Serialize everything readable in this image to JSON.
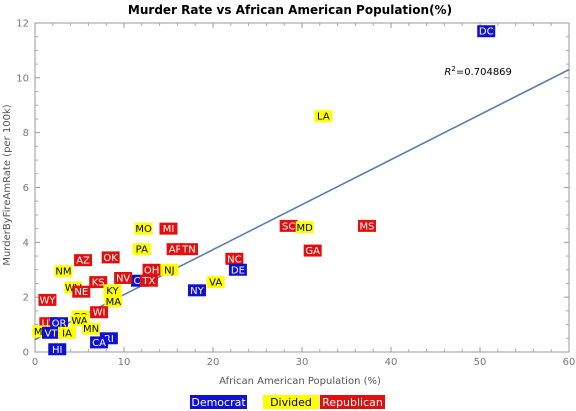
{
  "chart_data": {
    "type": "scatter",
    "title": "Murder Rate vs African American Population(%)",
    "xlabel": "African American Population (%)",
    "ylabel": "MurderByFireAmRate  (per 100k)",
    "xlim": [
      0,
      60
    ],
    "ylim": [
      0,
      12
    ],
    "xticks": [
      "0",
      "10",
      "20",
      "30",
      "40",
      "50",
      "60"
    ],
    "yticks": [
      "0",
      "2",
      "4",
      "6",
      "8",
      "10",
      "12"
    ],
    "grid": false,
    "legend_position": "bottom",
    "annotation": {
      "prefix": "R",
      "sup": "2",
      "text": "=0.704869",
      "x": 46,
      "y": 10.1
    },
    "trendline": {
      "x": [
        0,
        60
      ],
      "y": [
        0.45,
        10.3
      ]
    },
    "categories": [
      {
        "name": "Democrat",
        "color": "#1010d0",
        "text_color": "#ffffff"
      },
      {
        "name": "Divided",
        "color": "#ffff00",
        "text_color": "#000000"
      },
      {
        "name": "Republican",
        "color": "#e01010",
        "text_color": "#ffffff"
      }
    ],
    "points": [
      {
        "label": "DC",
        "x": 50.7,
        "y": 11.7,
        "group": "Democrat"
      },
      {
        "label": "LA",
        "x": 32.4,
        "y": 8.6,
        "group": "Divided"
      },
      {
        "label": "MS",
        "x": 37.3,
        "y": 4.6,
        "group": "Republican"
      },
      {
        "label": "SC",
        "x": 28.5,
        "y": 4.6,
        "group": "Republican"
      },
      {
        "label": "MD",
        "x": 30.3,
        "y": 4.55,
        "group": "Divided"
      },
      {
        "label": "GA",
        "x": 31.2,
        "y": 3.7,
        "group": "Republican"
      },
      {
        "label": "NC",
        "x": 22.4,
        "y": 3.4,
        "group": "Republican"
      },
      {
        "label": "DE",
        "x": 22.8,
        "y": 3.0,
        "group": "Democrat"
      },
      {
        "label": "VA",
        "x": 20.3,
        "y": 2.55,
        "group": "Divided"
      },
      {
        "label": "NY",
        "x": 18.2,
        "y": 2.25,
        "group": "Democrat"
      },
      {
        "label": "MO",
        "x": 12.2,
        "y": 4.5,
        "group": "Divided"
      },
      {
        "label": "MI",
        "x": 15.0,
        "y": 4.5,
        "group": "Republican"
      },
      {
        "label": "PA",
        "x": 12.0,
        "y": 3.75,
        "group": "Divided"
      },
      {
        "label": "AR",
        "x": 15.8,
        "y": 3.75,
        "group": "Republican"
      },
      {
        "label": "TN",
        "x": 17.3,
        "y": 3.75,
        "group": "Republican"
      },
      {
        "label": "OH",
        "x": 13.1,
        "y": 3.0,
        "group": "Republican"
      },
      {
        "label": "NJ",
        "x": 15.1,
        "y": 3.0,
        "group": "Divided"
      },
      {
        "label": "CT",
        "x": 11.8,
        "y": 2.6,
        "group": "Democrat"
      },
      {
        "label": "TX",
        "x": 12.8,
        "y": 2.6,
        "group": "Republican"
      },
      {
        "label": "NV",
        "x": 9.9,
        "y": 2.7,
        "group": "Republican"
      },
      {
        "label": "OK",
        "x": 8.5,
        "y": 3.45,
        "group": "Republican"
      },
      {
        "label": "AZ",
        "x": 5.4,
        "y": 3.35,
        "group": "Republican"
      },
      {
        "label": "NM",
        "x": 3.2,
        "y": 2.95,
        "group": "Divided"
      },
      {
        "label": "KS",
        "x": 7.1,
        "y": 2.55,
        "group": "Republican"
      },
      {
        "label": "WV",
        "x": 4.3,
        "y": 2.35,
        "group": "Divided"
      },
      {
        "label": "NE",
        "x": 5.2,
        "y": 2.2,
        "group": "Republican"
      },
      {
        "label": "KY",
        "x": 8.7,
        "y": 2.25,
        "group": "Divided"
      },
      {
        "label": "MA",
        "x": 8.8,
        "y": 1.85,
        "group": "Divided"
      },
      {
        "label": "WY",
        "x": 1.4,
        "y": 1.9,
        "group": "Republican"
      },
      {
        "label": "WI",
        "x": 7.2,
        "y": 1.45,
        "group": "Republican"
      },
      {
        "label": "CO",
        "x": 5.1,
        "y": 1.3,
        "group": "Divided"
      },
      {
        "label": "WA",
        "x": 5.0,
        "y": 1.15,
        "group": "Divided"
      },
      {
        "label": "UT",
        "x": 1.5,
        "y": 1.05,
        "group": "Republican"
      },
      {
        "label": "OR",
        "x": 2.7,
        "y": 1.05,
        "group": "Democrat"
      },
      {
        "label": "MN",
        "x": 6.3,
        "y": 0.85,
        "group": "Divided"
      },
      {
        "label": "MT",
        "x": 0.7,
        "y": 0.75,
        "group": "Divided"
      },
      {
        "label": "VT",
        "x": 1.8,
        "y": 0.7,
        "group": "Democrat"
      },
      {
        "label": "IA",
        "x": 3.6,
        "y": 0.7,
        "group": "Divided"
      },
      {
        "label": "RI",
        "x": 8.3,
        "y": 0.5,
        "group": "Democrat"
      },
      {
        "label": "CA",
        "x": 7.2,
        "y": 0.35,
        "group": "Democrat"
      },
      {
        "label": "HI",
        "x": 2.5,
        "y": 0.1,
        "group": "Democrat"
      }
    ]
  }
}
